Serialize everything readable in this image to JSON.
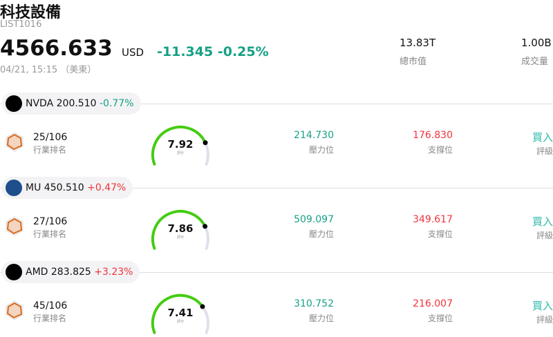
{
  "header": {
    "title": "科技設備",
    "code": "LIST1016",
    "price": "4566.633",
    "currency": "USD",
    "change": "-11.345",
    "change_pct": "-0.25%",
    "time": "04/21, 15:15 （美東）",
    "market_cap": {
      "value": "13.83T",
      "label": "總市值"
    },
    "volume": {
      "value": "1.00B",
      "label": "成交量"
    }
  },
  "colors": {
    "up": "#f0323c",
    "down": "#16a085",
    "gauge": "#44cc11",
    "rating": "#2ab8a8"
  },
  "stocks": [
    {
      "ticker": "NVDA",
      "price": "200.510",
      "change": "-0.77%",
      "dir": "down",
      "logo": "nvidia-logo",
      "rank": "25/106",
      "rank_label": "行業排名",
      "score": "7.92",
      "score_value": 7.92,
      "score_label": "評分",
      "resistance": "214.730",
      "resistance_label": "壓力位",
      "support": "176.830",
      "support_label": "支撐位",
      "rating": "買入",
      "rating_label": "評級"
    },
    {
      "ticker": "MU",
      "price": "450.510",
      "change": "+0.47%",
      "dir": "up",
      "logo": "micron-logo",
      "rank": "27/106",
      "rank_label": "行業排名",
      "score": "7.86",
      "score_value": 7.86,
      "score_label": "評分",
      "resistance": "509.097",
      "resistance_label": "壓力位",
      "support": "349.617",
      "support_label": "支撐位",
      "rating": "買入",
      "rating_label": "評級"
    },
    {
      "ticker": "AMD",
      "price": "283.825",
      "change": "+3.23%",
      "dir": "up",
      "logo": "amd-logo",
      "rank": "45/106",
      "rank_label": "行業排名",
      "score": "7.41",
      "score_value": 7.41,
      "score_label": "評分",
      "resistance": "310.752",
      "resistance_label": "壓力位",
      "support": "216.007",
      "support_label": "支撐位",
      "rating": "買入",
      "rating_label": "評級"
    }
  ]
}
